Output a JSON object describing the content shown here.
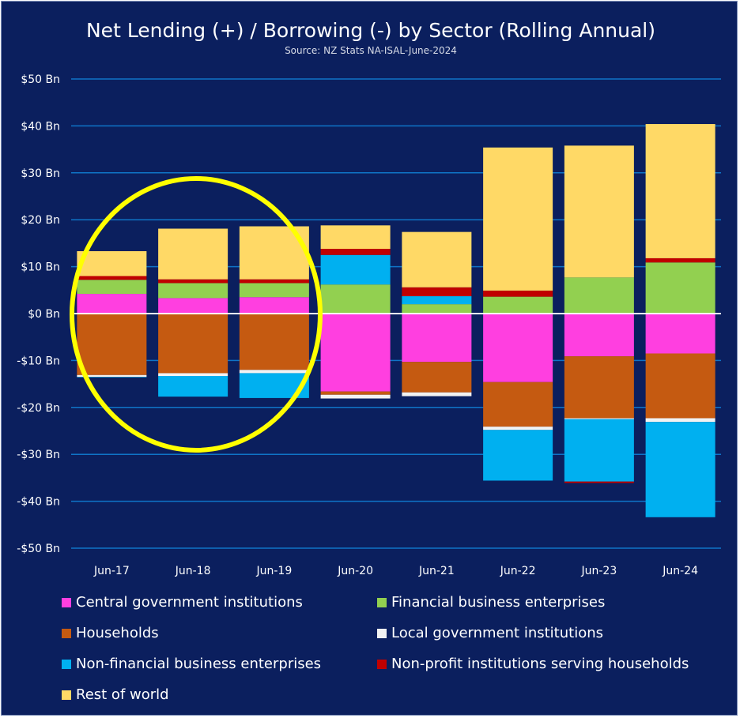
{
  "chart_data": {
    "type": "bar",
    "stacked": true,
    "title": "Net Lending (+) / Borrowing (-) by Sector (Rolling Annual)",
    "subtitle": "Source: NZ Stats NA-ISAL-June-2024",
    "categories": [
      "Jun-17",
      "Jun-18",
      "Jun-19",
      "Jun-20",
      "Jun-21",
      "Jun-22",
      "Jun-23",
      "Jun-24"
    ],
    "ylim": [
      -50,
      50
    ],
    "yticks": [
      50,
      40,
      30,
      20,
      10,
      0,
      -10,
      -20,
      -30,
      -40,
      -50
    ],
    "ytick_labels": [
      "$50 Bn",
      "$40 Bn",
      "$30 Bn",
      "$20 Bn",
      "$10 Bn",
      "$0 Bn",
      "-$10 Bn",
      "-$20 Bn",
      "-$30 Bn",
      "-$40 Bn",
      "-$50 Bn"
    ],
    "grid": true,
    "legend_position": "bottom",
    "series": [
      {
        "name": "Central government institutions",
        "color": "#ff3fe0",
        "values": [
          4.2,
          3.3,
          3.5,
          -16.6,
          -10.3,
          -14.6,
          -9.1,
          -8.5
        ]
      },
      {
        "name": "Financial business enterprises",
        "color": "#92d050",
        "values": [
          3.0,
          3.2,
          3.0,
          6.2,
          2.0,
          3.6,
          7.7,
          10.9
        ]
      },
      {
        "name": "Households",
        "color": "#c55a11",
        "values": [
          -13.1,
          -12.7,
          -12.0,
          -0.7,
          -6.5,
          -9.5,
          -13.2,
          -13.8
        ]
      },
      {
        "name": "Local government institutions",
        "color": "#f2f2f2",
        "values": [
          -0.4,
          -0.6,
          -0.7,
          -0.8,
          -0.8,
          -0.7,
          -0.2,
          -0.8
        ]
      },
      {
        "name": "Non-financial business enterprises",
        "color": "#00b0f0",
        "values": [
          -0.1,
          -4.4,
          -5.3,
          6.3,
          1.7,
          -10.8,
          -13.3,
          -20.3
        ]
      },
      {
        "name": "Non-profit institutions serving households",
        "color": "#c00000",
        "values": [
          0.8,
          0.8,
          0.8,
          1.3,
          1.9,
          1.3,
          -0.3,
          0.9
        ]
      },
      {
        "name": "Rest of world",
        "color": "#ffd966",
        "values": [
          5.3,
          10.8,
          11.3,
          5.0,
          11.8,
          30.5,
          28.1,
          28.6
        ]
      }
    ],
    "annotations": [
      {
        "type": "ellipse",
        "color": "#ffff00",
        "around_categories": [
          "Jun-17",
          "Jun-18",
          "Jun-19"
        ]
      }
    ]
  }
}
